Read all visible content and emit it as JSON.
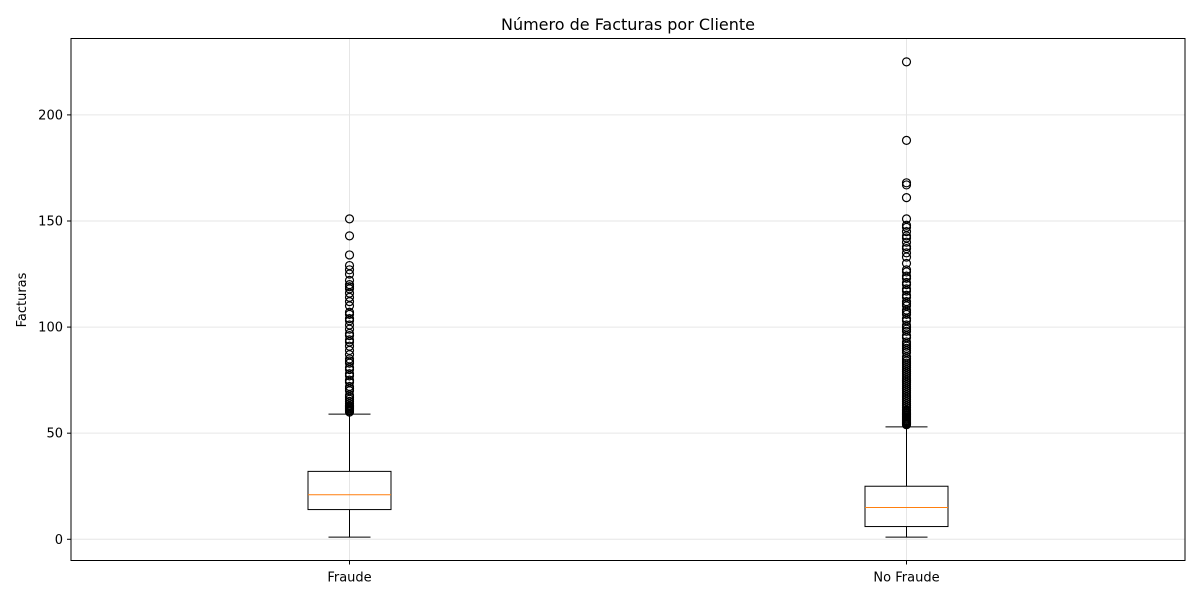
{
  "chart_data": {
    "type": "boxplot",
    "title": "Número de Facturas por Cliente",
    "xlabel": "",
    "ylabel": "Facturas",
    "ylim": [
      -10,
      236
    ],
    "yticks": [
      0,
      50,
      100,
      150,
      200
    ],
    "grid": true,
    "colors": {
      "box": "#000000",
      "median": "#ff7f0e",
      "grid": "#e6e6e6"
    },
    "categories": [
      "Fraude",
      "No Fraude"
    ],
    "boxes": [
      {
        "name": "Fraude",
        "whisker_low": 1,
        "q1": 14,
        "median": 21,
        "q3": 32,
        "whisker_high": 59,
        "outliers": [
          60,
          60.5,
          61,
          61.5,
          62,
          62.5,
          63,
          64,
          65,
          66,
          67,
          68,
          70,
          71,
          72,
          74,
          75,
          77,
          78,
          80,
          81,
          83,
          84,
          85,
          87,
          89,
          91,
          93,
          94,
          96,
          97,
          99,
          101,
          103,
          104,
          106,
          107,
          110,
          112,
          114,
          116,
          118,
          119,
          120,
          122,
          125,
          127,
          129,
          134,
          143,
          151
        ]
      },
      {
        "name": "No Fraude",
        "whisker_low": 1,
        "q1": 6,
        "median": 15,
        "q3": 25,
        "whisker_high": 53,
        "outliers": [
          54,
          54.5,
          55,
          55.5,
          56,
          56.5,
          57,
          57.5,
          58,
          58.5,
          59,
          59.5,
          60,
          60.5,
          61,
          62,
          63,
          64,
          65,
          66,
          67,
          68,
          69,
          70,
          71,
          72,
          73,
          74,
          75,
          76,
          77,
          78,
          79,
          80,
          81,
          82,
          83,
          84,
          85,
          86,
          88,
          89,
          90,
          91,
          92,
          93,
          95,
          96,
          98,
          99,
          100,
          101,
          103,
          104,
          106,
          107,
          108,
          110,
          111,
          112,
          114,
          115,
          117,
          118,
          120,
          121,
          123,
          124,
          126,
          127,
          130,
          133,
          135,
          137,
          138,
          140,
          142,
          143,
          145,
          147,
          148,
          151,
          161,
          167,
          168,
          188,
          225
        ]
      }
    ]
  }
}
